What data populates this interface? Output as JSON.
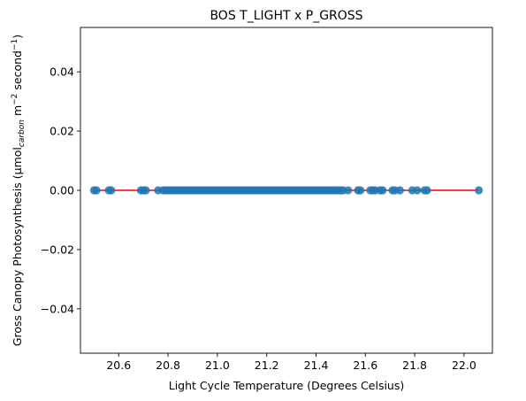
{
  "chart_data": {
    "type": "scatter",
    "title": "BOS T_LIGHT x P_GROSS",
    "xlabel": "Light Cycle Temperature (Degrees Celsius)",
    "ylabel": {
      "prefix": "Gross Canopy Photosynthesis (µmol",
      "sub": "carbon",
      "mid1": " m",
      "sup1": "−2",
      "mid2": " second",
      "sup2": "−1",
      "suffix": ")"
    },
    "xlim": [
      20.445,
      22.115
    ],
    "ylim": [
      -0.055,
      0.055
    ],
    "xticks": [
      20.6,
      20.8,
      21.0,
      21.2,
      21.4,
      21.6,
      21.8,
      22.0
    ],
    "xtick_labels": [
      "20.6",
      "20.8",
      "21.0",
      "21.2",
      "21.4",
      "21.6",
      "21.8",
      "22.0"
    ],
    "yticks": [
      -0.04,
      -0.02,
      0.0,
      0.02,
      0.04
    ],
    "ytick_labels": [
      "−0.04",
      "−0.02",
      "0.00",
      "0.02",
      "0.04"
    ],
    "grid": false,
    "point_color": "#1f77b4",
    "line_color": "#ff0000",
    "points": {
      "x": [
        20.5,
        20.51,
        20.56,
        20.57,
        20.69,
        20.7,
        20.71,
        20.76,
        20.78,
        20.79,
        20.8,
        20.81,
        20.82,
        20.83,
        20.84,
        20.85,
        20.86,
        20.87,
        20.88,
        20.89,
        20.9,
        20.91,
        20.92,
        20.93,
        20.94,
        20.95,
        20.96,
        20.97,
        20.98,
        20.99,
        21.0,
        21.01,
        21.02,
        21.03,
        21.04,
        21.05,
        21.06,
        21.07,
        21.08,
        21.09,
        21.1,
        21.11,
        21.12,
        21.13,
        21.14,
        21.15,
        21.16,
        21.17,
        21.18,
        21.19,
        21.2,
        21.21,
        21.22,
        21.23,
        21.24,
        21.25,
        21.26,
        21.27,
        21.28,
        21.29,
        21.3,
        21.31,
        21.32,
        21.33,
        21.34,
        21.35,
        21.36,
        21.37,
        21.38,
        21.39,
        21.4,
        21.41,
        21.42,
        21.43,
        21.44,
        21.45,
        21.46,
        21.47,
        21.48,
        21.49,
        21.5,
        21.51,
        21.53,
        21.57,
        21.58,
        21.62,
        21.63,
        21.64,
        21.66,
        21.67,
        21.71,
        21.72,
        21.74,
        21.79,
        21.81,
        21.84,
        21.85,
        22.06
      ],
      "y": [
        0,
        0,
        0,
        0,
        0,
        0,
        0,
        0,
        0,
        0,
        0,
        0,
        0,
        0,
        0,
        0,
        0,
        0,
        0,
        0,
        0,
        0,
        0,
        0,
        0,
        0,
        0,
        0,
        0,
        0,
        0,
        0,
        0,
        0,
        0,
        0,
        0,
        0,
        0,
        0,
        0,
        0,
        0,
        0,
        0,
        0,
        0,
        0,
        0,
        0,
        0,
        0,
        0,
        0,
        0,
        0,
        0,
        0,
        0,
        0,
        0,
        0,
        0,
        0,
        0,
        0,
        0,
        0,
        0,
        0,
        0,
        0,
        0,
        0,
        0,
        0,
        0,
        0,
        0,
        0,
        0,
        0,
        0,
        0,
        0,
        0,
        0,
        0,
        0,
        0,
        0,
        0,
        0,
        0,
        0,
        0,
        0,
        0
      ]
    },
    "fit_line": {
      "x": [
        20.5,
        22.06
      ],
      "y": [
        0,
        0
      ]
    }
  }
}
